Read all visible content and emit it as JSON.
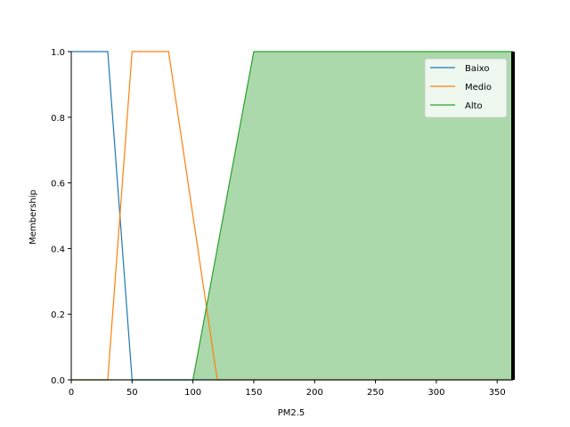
{
  "chart_data": {
    "type": "line",
    "title": "",
    "xlabel": "PM2.5",
    "ylabel": "Membership",
    "xlim": [
      0,
      363
    ],
    "ylim": [
      0,
      1.0
    ],
    "xticks": [
      0,
      50,
      100,
      150,
      200,
      250,
      300,
      350
    ],
    "yticks": [
      0.0,
      0.2,
      0.4,
      0.6,
      0.8,
      1.0
    ],
    "ytick_labels": [
      "0.0",
      "0.2",
      "0.4",
      "0.6",
      "0.8",
      "1.0"
    ],
    "grid": false,
    "legend_position": "top-right",
    "series": [
      {
        "name": "Baixo",
        "color": "#1f77b4",
        "x": [
          0,
          30,
          50,
          363
        ],
        "y": [
          1,
          1,
          0,
          0
        ]
      },
      {
        "name": "Medio",
        "color": "#ff7f0e",
        "x": [
          0,
          30,
          50,
          80,
          120,
          363
        ],
        "y": [
          0,
          0,
          1,
          1,
          0,
          0
        ]
      },
      {
        "name": "Alto",
        "color": "#2ca02c",
        "x": [
          0,
          100,
          150,
          363
        ],
        "y": [
          0,
          0,
          1,
          1
        ]
      }
    ],
    "filled_series": "Alto",
    "fill_color": "#2ca02c",
    "marker_x": 363
  }
}
